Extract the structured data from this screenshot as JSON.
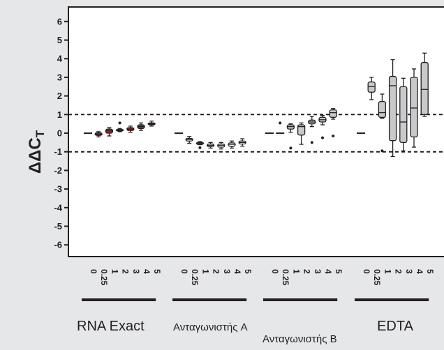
{
  "chart_data": {
    "type": "box",
    "ylabel": "ΔΔC",
    "ylabel_subscript": "T",
    "ylim": [
      -6.5,
      6.5
    ],
    "yticks": [
      "6",
      "5",
      "4",
      "3",
      "2",
      "1",
      "0",
      "-1",
      "-2",
      "-3",
      "-4",
      "-5",
      "-6"
    ],
    "reference_lines": [
      1,
      -1
    ],
    "x_tick_labels": [
      "0",
      "0.25",
      "1",
      "2",
      "3",
      "4",
      "5"
    ],
    "colors": {
      "background": "#e6e7e8",
      "plot": "#ffffff",
      "ink": "#231f20",
      "rna_fill": "#b5252a",
      "gray_fill": "#c8c9cb"
    },
    "groups": [
      {
        "name": "RNA Exact",
        "label_row": 0,
        "fill": "#b5252a",
        "boxes": [
          {
            "x": "0",
            "median": 0.0,
            "q1": 0.0,
            "q3": 0.0,
            "whisker_low": 0.0,
            "whisker_high": 0.0,
            "outliers": []
          },
          {
            "x": "0.25",
            "median": -0.05,
            "q1": -0.12,
            "q3": 0.02,
            "whisker_low": -0.2,
            "whisker_high": 0.08,
            "outliers": []
          },
          {
            "x": "1",
            "median": 0.12,
            "q1": 0.0,
            "q3": 0.22,
            "whisker_low": -0.15,
            "whisker_high": 0.3,
            "outliers": []
          },
          {
            "x": "2",
            "median": 0.15,
            "q1": 0.12,
            "q3": 0.2,
            "whisker_low": 0.08,
            "whisker_high": 0.25,
            "outliers": [
              0.55
            ]
          },
          {
            "x": "3",
            "median": 0.22,
            "q1": 0.14,
            "q3": 0.3,
            "whisker_low": 0.05,
            "whisker_high": 0.38,
            "outliers": []
          },
          {
            "x": "4",
            "median": 0.35,
            "q1": 0.25,
            "q3": 0.45,
            "whisker_low": 0.15,
            "whisker_high": 0.55,
            "outliers": []
          },
          {
            "x": "5",
            "median": 0.5,
            "q1": 0.45,
            "q3": 0.55,
            "whisker_low": 0.38,
            "whisker_high": 0.65,
            "outliers": []
          }
        ]
      },
      {
        "name": "Ανταγωνιστής A",
        "label_row": 0,
        "fill": "#ffffff",
        "boxes": [
          {
            "x": "0",
            "median": 0.0,
            "q1": 0.0,
            "q3": 0.0,
            "whisker_low": 0.0,
            "whisker_high": 0.0,
            "outliers": []
          },
          {
            "x": "0.25",
            "median": -0.35,
            "q1": -0.42,
            "q3": -0.28,
            "whisker_low": -0.55,
            "whisker_high": -0.18,
            "outliers": []
          },
          {
            "x": "1",
            "median": -0.55,
            "q1": -0.6,
            "q3": -0.5,
            "whisker_low": -0.62,
            "whisker_high": -0.45,
            "outliers": [
              -0.78
            ]
          },
          {
            "x": "2",
            "median": -0.65,
            "q1": -0.72,
            "q3": -0.58,
            "whisker_low": -0.8,
            "whisker_high": -0.5,
            "outliers": []
          },
          {
            "x": "3",
            "median": -0.65,
            "q1": -0.75,
            "q3": -0.58,
            "whisker_low": -0.85,
            "whisker_high": -0.5,
            "outliers": []
          },
          {
            "x": "4",
            "median": -0.6,
            "q1": -0.7,
            "q3": -0.52,
            "whisker_low": -0.8,
            "whisker_high": -0.42,
            "outliers": []
          },
          {
            "x": "5",
            "median": -0.5,
            "q1": -0.58,
            "q3": -0.42,
            "whisker_low": -0.7,
            "whisker_high": -0.3,
            "outliers": []
          }
        ]
      },
      {
        "name": "Ανταγωνιστής B",
        "label_row": 1,
        "fill": "#c8c9cb",
        "boxes": [
          {
            "x": "0",
            "median": 0.0,
            "q1": 0.0,
            "q3": 0.0,
            "whisker_low": 0.0,
            "whisker_high": 0.0,
            "outliers": []
          },
          {
            "x": "0.25",
            "median": 0.0,
            "q1": 0.0,
            "q3": 0.0,
            "whisker_low": 0.0,
            "whisker_high": 0.0,
            "outliers": [
              0.55
            ]
          },
          {
            "x": "1",
            "median": 0.35,
            "q1": 0.22,
            "q3": 0.45,
            "whisker_low": 0.05,
            "whisker_high": 0.5,
            "outliers": [
              -0.8
            ]
          },
          {
            "x": "2",
            "median": 0.35,
            "q1": -0.1,
            "q3": 0.45,
            "whisker_low": -0.6,
            "whisker_high": 0.55,
            "outliers": []
          },
          {
            "x": "3",
            "median": 0.6,
            "q1": 0.5,
            "q3": 0.7,
            "whisker_low": 0.35,
            "whisker_high": 0.9,
            "outliers": [
              -0.5
            ]
          },
          {
            "x": "4",
            "median": 0.72,
            "q1": 0.6,
            "q3": 0.85,
            "whisker_low": 0.45,
            "whisker_high": 0.95,
            "outliers": [
              -0.25
            ]
          },
          {
            "x": "5",
            "median": 1.1,
            "q1": 0.85,
            "q3": 1.25,
            "whisker_low": 0.75,
            "whisker_high": 1.32,
            "outliers": [
              -0.15
            ]
          }
        ]
      },
      {
        "name": "EDTA",
        "label_row": 0,
        "fill": "#c8c9cb",
        "boxes": [
          {
            "x": "0",
            "median": 0.0,
            "q1": 0.0,
            "q3": 0.0,
            "whisker_low": 0.0,
            "whisker_high": 0.0,
            "outliers": []
          },
          {
            "x": "0.25",
            "median": 2.5,
            "q1": 2.2,
            "q3": 2.75,
            "whisker_low": 1.8,
            "whisker_high": 3.0,
            "outliers": []
          },
          {
            "x": "1",
            "median": 1.1,
            "q1": 0.85,
            "q3": 1.7,
            "whisker_low": 0.8,
            "whisker_high": 2.1,
            "outliers": [
              -0.95
            ]
          },
          {
            "x": "2",
            "median": 2.55,
            "q1": -0.4,
            "q3": 3.05,
            "whisker_low": -1.25,
            "whisker_high": 3.95,
            "outliers": []
          },
          {
            "x": "3",
            "median": 0.6,
            "q1": -0.5,
            "q3": 2.5,
            "whisker_low": -0.95,
            "whisker_high": 2.95,
            "outliers": []
          },
          {
            "x": "4",
            "median": 1.35,
            "q1": -0.2,
            "q3": 3.0,
            "whisker_low": -0.75,
            "whisker_high": 3.45,
            "outliers": []
          },
          {
            "x": "5",
            "median": 2.35,
            "q1": 1.0,
            "q3": 3.8,
            "whisker_low": 0.9,
            "whisker_high": 4.3,
            "outliers": []
          }
        ]
      }
    ]
  }
}
